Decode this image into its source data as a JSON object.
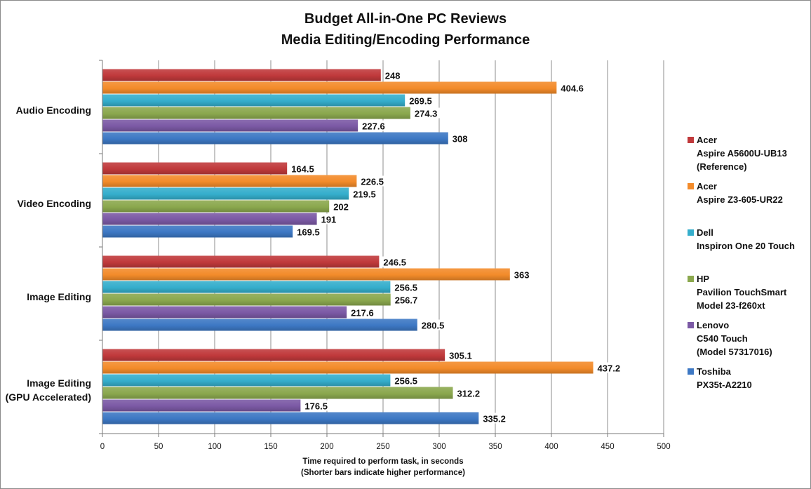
{
  "chart_data": {
    "type": "bar",
    "orientation": "horizontal",
    "title": "Budget All-in-One PC Reviews",
    "subtitle": "Media Editing/Encoding Performance",
    "categories": [
      "Audio Encoding",
      "Video Encoding",
      "Image Editing",
      "Image Editing\n(GPU Accelerated)"
    ],
    "series": [
      {
        "name": "Acer\nAspire A5600U-UB13\n(Reference)",
        "color": "#C0393B",
        "values": [
          248,
          164.5,
          246.5,
          305.1
        ]
      },
      {
        "name": "Acer\nAspire Z3-605-UR22",
        "color": "#F38B2A",
        "values": [
          404.6,
          226.5,
          363,
          437.2
        ]
      },
      {
        "name": "Dell\nInspiron One 20 Touch",
        "color": "#35AECC",
        "values": [
          269.5,
          219.5,
          256.5,
          256.5
        ]
      },
      {
        "name": "HP\nPavilion TouchSmart\nModel 23-f260xt",
        "color": "#8BA84E",
        "values": [
          274.3,
          202,
          256.7,
          312.2
        ]
      },
      {
        "name": "Lenovo\nC540 Touch\n(Model 57317016)",
        "color": "#7B59A5",
        "values": [
          227.6,
          191,
          217.6,
          176.5
        ]
      },
      {
        "name": "Toshiba\nPX35t-A2210",
        "color": "#3D78C4",
        "values": [
          308,
          169.5,
          280.5,
          335.2
        ]
      }
    ],
    "xlabel": "Time required to perform task, in seconds",
    "xlabel_note": "(Shorter bars indicate  higher performance)",
    "ylabel": "",
    "xlim": [
      0,
      500
    ],
    "xticks": [
      0,
      50,
      100,
      150,
      200,
      250,
      300,
      350,
      400,
      450,
      500
    ],
    "grid": true,
    "legend_position": "right",
    "data_labels": true
  }
}
